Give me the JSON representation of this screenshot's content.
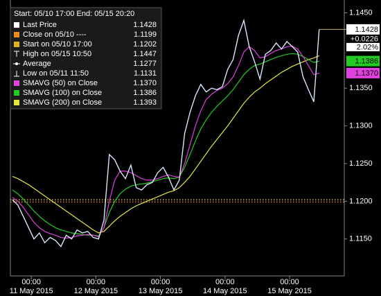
{
  "chart_data": {
    "type": "line",
    "range_label": "Start: 05/10 17:00 End: 05/15 20:20",
    "x": [
      "2015-05-10 17:00",
      "2015-05-10 19:00",
      "2015-05-10 21:00",
      "2015-05-10 23:00",
      "2015-05-11 01:00",
      "2015-05-11 03:00",
      "2015-05-11 05:00",
      "2015-05-11 07:00",
      "2015-05-11 09:00",
      "2015-05-11 11:00",
      "2015-05-11 13:00",
      "2015-05-11 15:00",
      "2015-05-11 17:00",
      "2015-05-11 19:00",
      "2015-05-11 21:00",
      "2015-05-11 23:00",
      "2015-05-12 01:00",
      "2015-05-12 03:00",
      "2015-05-12 05:00",
      "2015-05-12 07:00",
      "2015-05-12 09:00",
      "2015-05-12 11:00",
      "2015-05-12 13:00",
      "2015-05-12 15:00",
      "2015-05-12 17:00",
      "2015-05-12 19:00",
      "2015-05-12 21:00",
      "2015-05-12 23:00",
      "2015-05-13 01:00",
      "2015-05-13 03:00",
      "2015-05-13 05:00",
      "2015-05-13 07:00",
      "2015-05-13 09:00",
      "2015-05-13 11:00",
      "2015-05-13 13:00",
      "2015-05-13 15:00",
      "2015-05-13 17:00",
      "2015-05-13 19:00",
      "2015-05-13 21:00",
      "2015-05-13 23:00",
      "2015-05-14 01:00",
      "2015-05-14 03:00",
      "2015-05-14 05:00",
      "2015-05-14 07:00",
      "2015-05-14 09:00",
      "2015-05-14 11:00",
      "2015-05-14 13:00",
      "2015-05-14 15:00",
      "2015-05-14 17:00",
      "2015-05-14 19:00",
      "2015-05-14 21:00",
      "2015-05-14 23:00",
      "2015-05-15 01:00",
      "2015-05-15 03:00",
      "2015-05-15 05:00",
      "2015-05-15 07:00",
      "2015-05-15 09:00",
      "2015-05-15 11:00"
    ],
    "xlim": [
      "2015-05-10 17:00",
      "2015-05-15 20:20"
    ],
    "xticks": [
      {
        "value": "2015-05-11 00:00",
        "label": "00:00",
        "sublabel": "11 May 2015"
      },
      {
        "value": "2015-05-12 00:00",
        "label": "00:00",
        "sublabel": "12 May 2015"
      },
      {
        "value": "2015-05-13 00:00",
        "label": "00:00",
        "sublabel": "13 May 2015"
      },
      {
        "value": "2015-05-14 00:00",
        "label": "00:00",
        "sublabel": "14 May 2015"
      },
      {
        "value": "2015-05-15 00:00",
        "label": "00:00",
        "sublabel": "15 May 2015"
      }
    ],
    "ylim": [
      1.1101,
      1.1467
    ],
    "yticks": [
      {
        "value": 1.115,
        "label": "1.1150"
      },
      {
        "value": 1.12,
        "label": "1.1200"
      },
      {
        "value": 1.125,
        "label": "1.1250"
      },
      {
        "value": 1.13,
        "label": "1.1300"
      },
      {
        "value": 1.135,
        "label": "1.1350"
      },
      {
        "value": 1.145,
        "label": "1.1450"
      }
    ],
    "grid": false,
    "series": [
      {
        "name": "Last Price",
        "color": "#d8e8ff",
        "last": 1.1428,
        "badge": true,
        "values": [
          1.1202,
          1.1195,
          1.118,
          1.1165,
          1.115,
          1.1158,
          1.1145,
          1.1152,
          1.1148,
          1.114,
          1.1155,
          1.115,
          1.1162,
          1.1158,
          1.116,
          1.1152,
          1.115,
          1.1175,
          1.1262,
          1.1255,
          1.124,
          1.123,
          1.1248,
          1.1218,
          1.1215,
          1.1222,
          1.1225,
          1.1238,
          1.1245,
          1.1232,
          1.1215,
          1.1228,
          1.129,
          1.1318,
          1.134,
          1.1355,
          1.1345,
          1.135,
          1.1348,
          1.1352,
          1.1375,
          1.1388,
          1.142,
          1.144,
          1.1405,
          1.1385,
          1.1362,
          1.1395,
          1.14,
          1.141,
          1.1402,
          1.1412,
          1.1405,
          1.1398,
          1.1365,
          1.1348,
          1.1332,
          1.1428
        ]
      },
      {
        "name": "SMAVG (50) on Close",
        "color": "#e040e0",
        "last": 1.137,
        "last_label": "1.1370",
        "badge": true,
        "values": [
          1.1205,
          1.12,
          1.1192,
          1.1182,
          1.1172,
          1.1165,
          1.116,
          1.1157,
          1.1155,
          1.1152,
          1.1151,
          1.1152,
          1.1154,
          1.1155,
          1.1156,
          1.1155,
          1.1153,
          1.1165,
          1.12,
          1.1228,
          1.124,
          1.124,
          1.1238,
          1.1234,
          1.123,
          1.1228,
          1.1228,
          1.123,
          1.1233,
          1.1235,
          1.1233,
          1.1232,
          1.125,
          1.1275,
          1.13,
          1.132,
          1.1335,
          1.1342,
          1.1347,
          1.135,
          1.1356,
          1.1365,
          1.138,
          1.1398,
          1.1405,
          1.14,
          1.139,
          1.1392,
          1.1396,
          1.14,
          1.1402,
          1.1405,
          1.1406,
          1.1402,
          1.1392,
          1.138,
          1.1368,
          1.137
        ]
      },
      {
        "name": "SMAVG (100) on Close",
        "color": "#22cc22",
        "last": 1.1386,
        "badge": true,
        "values": [
          1.1215,
          1.121,
          1.1203,
          1.1195,
          1.1187,
          1.118,
          1.1174,
          1.1169,
          1.1165,
          1.1162,
          1.116,
          1.1158,
          1.1157,
          1.1156,
          1.1155,
          1.1155,
          1.1154,
          1.1165,
          1.1185,
          1.12,
          1.121,
          1.1216,
          1.122,
          1.1222,
          1.1223,
          1.1224,
          1.1226,
          1.1228,
          1.123,
          1.1231,
          1.123,
          1.1232,
          1.1245,
          1.1262,
          1.128,
          1.1296,
          1.1308,
          1.1318,
          1.1326,
          1.1333,
          1.134,
          1.1348,
          1.1358,
          1.1368,
          1.1375,
          1.138,
          1.1382,
          1.1385,
          1.1388,
          1.1391,
          1.1393,
          1.1395,
          1.1396,
          1.1395,
          1.1392,
          1.1388,
          1.1384,
          1.1386
        ]
      },
      {
        "name": "SMAVG (200) on Close",
        "color": "#e6e640",
        "last": 1.1393,
        "badge": false,
        "values": [
          1.1233,
          1.123,
          1.1226,
          1.1222,
          1.1217,
          1.1212,
          1.1207,
          1.1202,
          1.1197,
          1.1192,
          1.1187,
          1.1182,
          1.1177,
          1.1172,
          1.1167,
          1.1162,
          1.1158,
          1.116,
          1.1167,
          1.1174,
          1.118,
          1.1185,
          1.119,
          1.1194,
          1.1197,
          1.12,
          1.1203,
          1.1206,
          1.1209,
          1.1212,
          1.1214,
          1.1218,
          1.1225,
          1.1233,
          1.1243,
          1.1253,
          1.1263,
          1.1273,
          1.1282,
          1.1291,
          1.13,
          1.131,
          1.132,
          1.133,
          1.1338,
          1.1345,
          1.135,
          1.1356,
          1.1361,
          1.1366,
          1.1371,
          1.1375,
          1.1379,
          1.1382,
          1.1385,
          1.1388,
          1.139,
          1.1393
        ]
      }
    ],
    "stats": [
      {
        "name": "Close on 05/10 ----",
        "value": 1.1199,
        "marker": "square",
        "color": "#f08c1e"
      },
      {
        "name": "Start on 05/10 17:00",
        "value": 1.1202,
        "marker": "square",
        "color": "#e0b020"
      },
      {
        "name": "High on 05/15 10:50",
        "value": 1.1447,
        "marker": "high",
        "color": "#ffffff"
      },
      {
        "name": "Average",
        "value": 1.1277,
        "marker": "average",
        "color": "#ffffff"
      },
      {
        "name": "Low on 05/11 11:50",
        "value": 1.1131,
        "marker": "low",
        "color": "#ffffff"
      }
    ],
    "change": {
      "value": 0.0226,
      "label": "+0.0226"
    },
    "change_pct": {
      "value": 2.02,
      "label": "2.02%"
    }
  }
}
